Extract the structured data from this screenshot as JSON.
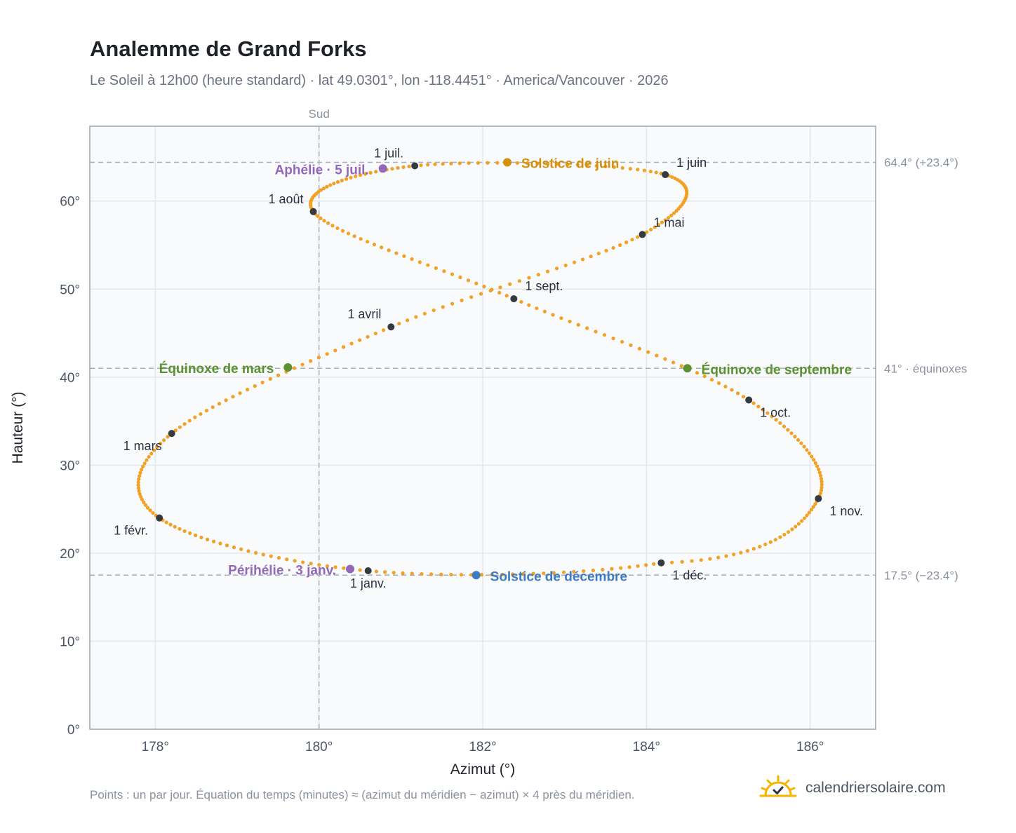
{
  "header": {
    "title": "Analemme de Grand Forks",
    "subtitle": "Le Soleil à 12h00 (heure standard) · lat 49.0301°, lon -118.4451° · America/Vancouver · 2026"
  },
  "footer": {
    "note": "Points : un par jour. Équation du temps (minutes) ≈ (azimut du méridien − azimut) × 4 près du méridien.",
    "brand": "calendriersolaire.com"
  },
  "colors": {
    "curve": "#f2a124",
    "month_marker": "#343a40",
    "june_solstice": "#d4900a",
    "december_solstice": "#3d7cc0",
    "equinox": "#5a9232",
    "apsis": "#9468b8",
    "grid": "#e3e7ec",
    "plot_bg": "#f8fafc",
    "ref_line": "#a6b0bb"
  },
  "chart_data": {
    "type": "scatter",
    "xlabel": "Azimut (°)",
    "ylabel": "Hauteur (°)",
    "xlim": [
      177.2,
      186.8
    ],
    "ylim": [
      0,
      68.5
    ],
    "xticks": [
      178,
      180,
      182,
      184,
      186
    ],
    "yticks": [
      0,
      10,
      20,
      30,
      40,
      50,
      60
    ],
    "x_tick_labels": [
      "178°",
      "180°",
      "182°",
      "184°",
      "186°"
    ],
    "y_tick_labels": [
      "0°",
      "10°",
      "20°",
      "30°",
      "40°",
      "50°",
      "60°"
    ],
    "meridian": {
      "x": 180,
      "label": "Sud"
    },
    "reference_lines": [
      {
        "y": 64.4,
        "label": "64.4° (+23.4°)"
      },
      {
        "y": 41.0,
        "label": "41° · équinoxes"
      },
      {
        "y": 17.5,
        "label": "17.5° (−23.4°)"
      }
    ],
    "series": [
      {
        "points": [
          {
            "day": 1,
            "x": 180.6,
            "y": 18.0
          },
          {
            "day": 32,
            "x": 178.05,
            "y": 24.0
          },
          {
            "day": 60,
            "x": 178.2,
            "y": 33.6
          },
          {
            "day": 91,
            "x": 180.88,
            "y": 45.7
          },
          {
            "day": 121,
            "x": 183.95,
            "y": 56.2
          },
          {
            "day": 152,
            "x": 184.23,
            "y": 63.0
          },
          {
            "day": 182,
            "x": 181.17,
            "y": 64.0
          },
          {
            "day": 213,
            "x": 179.93,
            "y": 58.8
          },
          {
            "day": 244,
            "x": 182.38,
            "y": 48.9
          },
          {
            "day": 274,
            "x": 185.25,
            "y": 37.4
          },
          {
            "day": 305,
            "x": 186.1,
            "y": 26.2
          },
          {
            "day": 335,
            "x": 184.18,
            "y": 18.9
          },
          {
            "day": 366,
            "x": 180.6,
            "y": 18.0
          }
        ]
      }
    ],
    "month_markers": [
      {
        "label": "1 janv.",
        "x": 180.6,
        "y": 18.0
      },
      {
        "label": "1 févr.",
        "x": 178.05,
        "y": 24.0
      },
      {
        "label": "1 mars",
        "x": 178.2,
        "y": 33.6
      },
      {
        "label": "1 avril",
        "x": 180.88,
        "y": 45.7
      },
      {
        "label": "1 mai",
        "x": 183.95,
        "y": 56.2
      },
      {
        "label": "1 juin",
        "x": 184.23,
        "y": 63.0
      },
      {
        "label": "1 juil.",
        "x": 181.17,
        "y": 64.0
      },
      {
        "label": "1 août",
        "x": 179.93,
        "y": 58.8
      },
      {
        "label": "1 sept.",
        "x": 182.38,
        "y": 48.9
      },
      {
        "label": "1 oct.",
        "x": 185.25,
        "y": 37.4
      },
      {
        "label": "1 nov.",
        "x": 186.1,
        "y": 26.2
      },
      {
        "label": "1 déc.",
        "x": 184.18,
        "y": 18.9
      }
    ],
    "events": [
      {
        "label": "Solstice de juin",
        "x": 182.3,
        "y": 64.4,
        "kind": "june_solstice"
      },
      {
        "label": "Solstice de décembre",
        "x": 181.92,
        "y": 17.5,
        "kind": "december_solstice"
      },
      {
        "label": "Équinoxe de mars",
        "x": 179.62,
        "y": 41.1,
        "kind": "equinox"
      },
      {
        "label": "Équinoxe de septembre",
        "x": 184.5,
        "y": 41.0,
        "kind": "equinox"
      },
      {
        "label": "Aphélie · 5 juil.",
        "x": 180.78,
        "y": 63.7,
        "kind": "apsis"
      },
      {
        "label": "Périhélie · 3 janv.",
        "x": 180.38,
        "y": 18.2,
        "kind": "apsis"
      }
    ]
  }
}
